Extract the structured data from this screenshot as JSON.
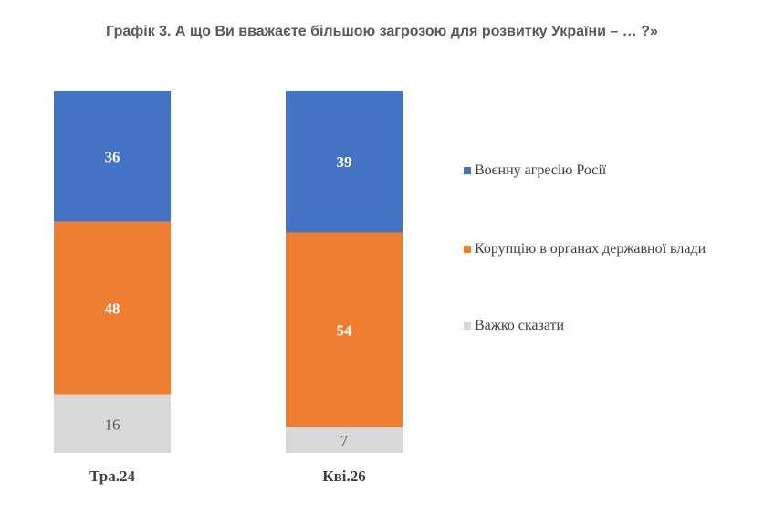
{
  "chart_data": {
    "type": "bar",
    "stacked": true,
    "percent": true,
    "title": "Графік 3. А що Ви вважаєте більшою загрозою для розвитку України – … ?»",
    "categories": [
      "Тра.24",
      "Кві.26"
    ],
    "series": [
      {
        "name": "Воєнну агресію Росії",
        "color": "#4472C4",
        "label_color": "#FFFFFF",
        "values": [
          36,
          39
        ]
      },
      {
        "name": "Корупцію в органах державної влади",
        "color": "#ED7D31",
        "label_color": "#FFFFFF",
        "values": [
          48,
          54
        ]
      },
      {
        "name": "Важко сказати",
        "color": "#D9D9D9",
        "label_color": "#595959",
        "values": [
          16,
          7
        ]
      }
    ],
    "ylim": [
      0,
      100
    ],
    "grid": false,
    "legend_position": "right"
  }
}
